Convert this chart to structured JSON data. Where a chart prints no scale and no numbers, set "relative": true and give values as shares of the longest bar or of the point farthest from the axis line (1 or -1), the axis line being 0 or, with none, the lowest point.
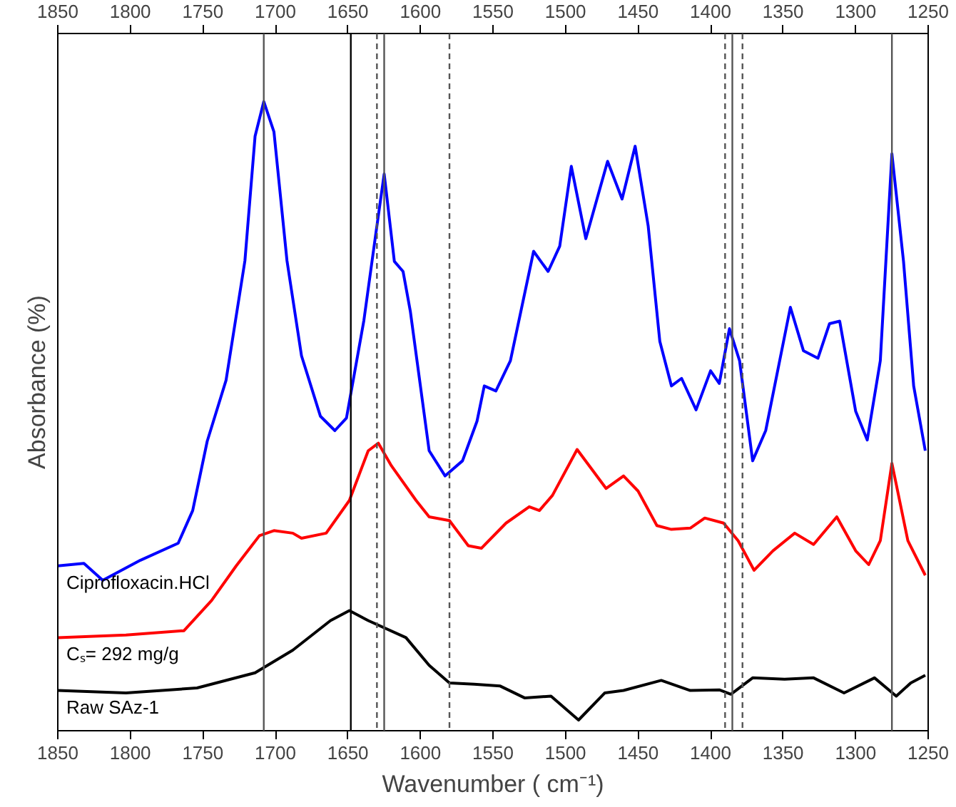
{
  "chart_data": {
    "type": "line",
    "relative": true,
    "xlabel": "Wavenumber ( cm⁻¹)",
    "ylabel": "Absorbance (%)",
    "xlim": [
      1850,
      1250
    ],
    "xticks": [
      1850,
      1800,
      1750,
      1700,
      1650,
      1600,
      1550,
      1500,
      1450,
      1400,
      1350,
      1300,
      1250
    ],
    "x2lim": [
      1850,
      1250
    ],
    "x2ticks": [
      1850,
      1800,
      1750,
      1700,
      1650,
      1600,
      1550,
      1500,
      1450,
      1400,
      1350,
      1300,
      1250
    ],
    "grid": false,
    "marker": "none",
    "line_style": "solid",
    "series": [
      {
        "name": "Ciprofloxacin.HCl",
        "color": "#0000ff",
        "x": [
          1850,
          1832,
          1819,
          1793,
          1767,
          1757,
          1747,
          1734,
          1721,
          1714,
          1708,
          1701,
          1692,
          1682,
          1669,
          1659,
          1651,
          1639,
          1631,
          1625,
          1618,
          1612,
          1607,
          1594,
          1583,
          1571,
          1561,
          1556,
          1548,
          1538,
          1522,
          1512,
          1504,
          1496,
          1486,
          1471,
          1461,
          1452,
          1443,
          1435,
          1427,
          1420,
          1410,
          1400,
          1394,
          1387,
          1380,
          1371,
          1362,
          1345,
          1336,
          1326,
          1318,
          1311,
          1300,
          1292,
          1283,
          1275,
          1267,
          1260,
          1252
        ],
        "values": [
          0.262,
          0.266,
          0.239,
          0.271,
          0.298,
          0.35,
          0.46,
          0.557,
          0.747,
          0.945,
          1.0,
          0.952,
          0.747,
          0.596,
          0.5,
          0.477,
          0.497,
          0.652,
          0.786,
          0.885,
          0.746,
          0.73,
          0.667,
          0.445,
          0.405,
          0.429,
          0.492,
          0.548,
          0.54,
          0.588,
          0.762,
          0.73,
          0.77,
          0.897,
          0.782,
          0.905,
          0.845,
          0.929,
          0.802,
          0.619,
          0.548,
          0.56,
          0.51,
          0.572,
          0.552,
          0.639,
          0.588,
          0.429,
          0.477,
          0.673,
          0.604,
          0.592,
          0.647,
          0.651,
          0.508,
          0.462,
          0.588,
          0.917,
          0.746,
          0.548,
          0.445
        ]
      },
      {
        "name": "Cₛ= 292 mg/g",
        "color": "#ff0000",
        "x": [
          1850,
          1803,
          1763,
          1744,
          1727,
          1711,
          1701,
          1688,
          1682,
          1665,
          1649,
          1636,
          1629,
          1620,
          1603,
          1594,
          1580,
          1567,
          1558,
          1541,
          1525,
          1518,
          1509,
          1492,
          1472,
          1460,
          1450,
          1437,
          1427,
          1414,
          1404,
          1391,
          1381,
          1370,
          1357,
          1342,
          1329,
          1313,
          1300,
          1291,
          1283,
          1275,
          1264,
          1252
        ],
        "values": [
          0.148,
          0.152,
          0.159,
          0.207,
          0.262,
          0.31,
          0.318,
          0.314,
          0.306,
          0.314,
          0.366,
          0.445,
          0.457,
          0.421,
          0.366,
          0.34,
          0.334,
          0.294,
          0.29,
          0.33,
          0.356,
          0.35,
          0.374,
          0.447,
          0.385,
          0.405,
          0.381,
          0.326,
          0.32,
          0.322,
          0.338,
          0.33,
          0.302,
          0.255,
          0.286,
          0.314,
          0.296,
          0.34,
          0.286,
          0.264,
          0.302,
          0.425,
          0.302,
          0.247
        ]
      },
      {
        "name": "Raw SAz-1",
        "color": "#000000",
        "x": [
          1850,
          1803,
          1754,
          1714,
          1688,
          1662,
          1649,
          1636,
          1610,
          1594,
          1580,
          1563,
          1545,
          1528,
          1510,
          1491,
          1473,
          1460,
          1434,
          1414,
          1394,
          1386,
          1371,
          1349,
          1329,
          1308,
          1287,
          1272,
          1262,
          1252
        ],
        "values": [
          0.064,
          0.06,
          0.068,
          0.092,
          0.128,
          0.175,
          0.191,
          0.175,
          0.148,
          0.104,
          0.076,
          0.074,
          0.071,
          0.052,
          0.055,
          0.017,
          0.06,
          0.064,
          0.08,
          0.064,
          0.065,
          0.058,
          0.084,
          0.082,
          0.084,
          0.06,
          0.084,
          0.055,
          0.076,
          0.088
        ]
      }
    ],
    "ref_lines": [
      {
        "axis": "x",
        "value": 1708,
        "color": "#555555",
        "line_style": "solid"
      },
      {
        "axis": "x",
        "value": 1630,
        "color": "#555555",
        "line_style": "dashed"
      },
      {
        "axis": "x",
        "value": 1625,
        "color": "#555555",
        "line_style": "solid"
      },
      {
        "axis": "x",
        "value": 1648,
        "color": "#000000",
        "line_style": "solid"
      },
      {
        "axis": "x",
        "value": 1580,
        "color": "#555555",
        "line_style": "dashed"
      },
      {
        "axis": "x",
        "value": 1390,
        "color": "#555555",
        "line_style": "dashed"
      },
      {
        "axis": "x",
        "value": 1385,
        "color": "#555555",
        "line_style": "solid"
      },
      {
        "axis": "x",
        "value": 1378,
        "color": "#555555",
        "line_style": "dashed"
      },
      {
        "axis": "x",
        "value": 1275,
        "color": "#555555",
        "line_style": "solid"
      }
    ]
  }
}
